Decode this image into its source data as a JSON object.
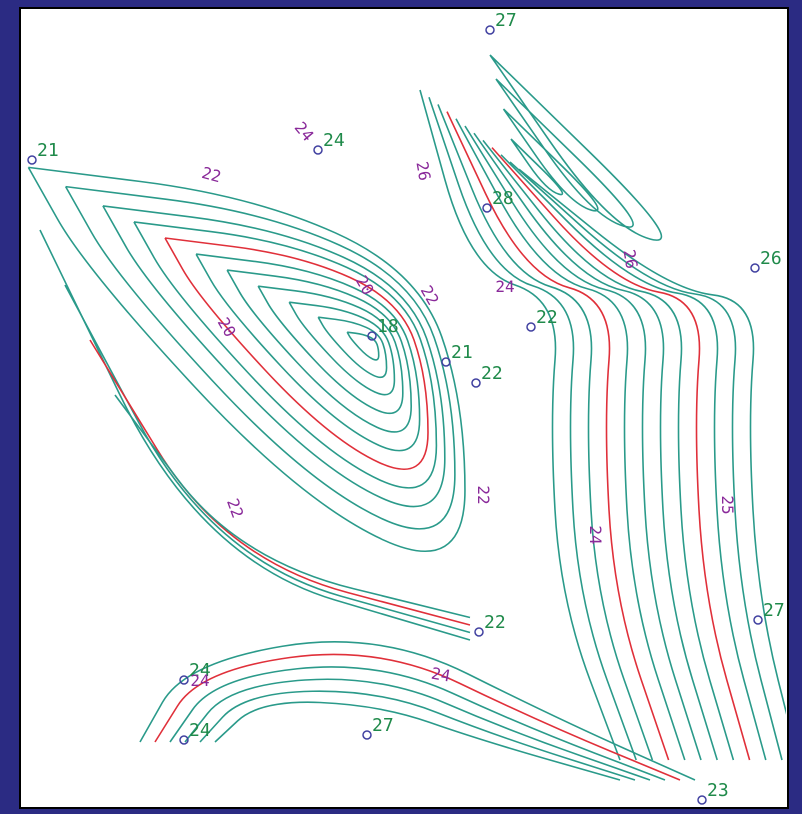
{
  "stations": [
    "27",
    "21",
    "24",
    "28",
    "26",
    "18",
    "21",
    "22",
    "22",
    "22",
    "27",
    "24",
    "24",
    "27",
    "23"
  ],
  "contour_labels": [
    "24",
    "22",
    "26",
    "26",
    "20",
    "22",
    "24",
    "20",
    "22",
    "22",
    "24",
    "25",
    "24",
    "24"
  ]
}
